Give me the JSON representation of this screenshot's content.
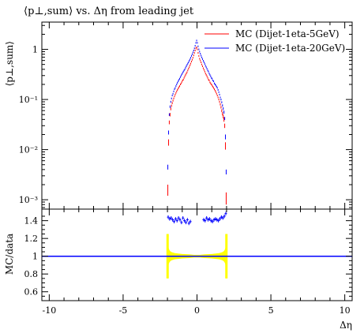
{
  "chart_data": [
    {
      "type": "scatter",
      "title": "⟨p⊥,sum⟩ vs. Δη from leading jet",
      "ylabel": "⟨p⊥,sum⟩",
      "xlabel": "",
      "xlim": [
        -10.5,
        10.5
      ],
      "yscale": "log",
      "ylim": [
        0.00065,
        3.5
      ],
      "yticks": [
        0.001,
        0.01,
        0.1,
        1
      ],
      "yticklabels": [
        "10⁻³",
        "10⁻²",
        "10⁻¹",
        "1"
      ],
      "legend": "top-right",
      "series": [
        {
          "name": "MC (Dijet-1eta-5GeV)",
          "color": "#ff0000",
          "points": [
            [
              -1.975,
              0.0016,
              0.0004
            ],
            [
              -1.925,
              0.014,
              0.002
            ],
            [
              -1.875,
              0.035,
              0.003
            ],
            [
              -1.825,
              0.05,
              0.004
            ],
            [
              -1.775,
              0.065,
              0.004
            ],
            [
              -1.725,
              0.075,
              0.004
            ],
            [
              -1.675,
              0.085,
              0.004
            ],
            [
              -1.625,
              0.095,
              0.004
            ],
            [
              -1.575,
              0.105,
              0.004
            ],
            [
              -1.525,
              0.115,
              0.004
            ],
            [
              -1.475,
              0.125,
              0.004
            ],
            [
              -1.425,
              0.135,
              0.004
            ],
            [
              -1.375,
              0.145,
              0.004
            ],
            [
              -1.325,
              0.155,
              0.004
            ],
            [
              -1.275,
              0.165,
              0.004
            ],
            [
              -1.225,
              0.175,
              0.004
            ],
            [
              -1.175,
              0.185,
              0.004
            ],
            [
              -1.125,
              0.2,
              0.004
            ],
            [
              -1.075,
              0.21,
              0.004
            ],
            [
              -1.025,
              0.225,
              0.004
            ],
            [
              -0.975,
              0.24,
              0.004
            ],
            [
              -0.925,
              0.25,
              0.004
            ],
            [
              -0.875,
              0.27,
              0.004
            ],
            [
              -0.825,
              0.29,
              0.004
            ],
            [
              -0.775,
              0.31,
              0.004
            ],
            [
              -0.725,
              0.33,
              0.004
            ],
            [
              -0.675,
              0.35,
              0.004
            ],
            [
              -0.625,
              0.38,
              0.004
            ],
            [
              -0.575,
              0.41,
              0.004
            ],
            [
              -0.525,
              0.44,
              0.004
            ],
            [
              -0.475,
              0.48,
              0.004
            ],
            [
              -0.425,
              0.52,
              0.004
            ],
            [
              -0.375,
              0.57,
              0.004
            ],
            [
              -0.325,
              0.62,
              0.004
            ],
            [
              -0.275,
              0.68,
              0.004
            ],
            [
              -0.225,
              0.76,
              0.004
            ],
            [
              -0.175,
              0.85,
              0.004
            ],
            [
              -0.125,
              0.95,
              0.004
            ],
            [
              -0.075,
              1.05,
              0.004
            ],
            [
              -0.025,
              1.1,
              0.004
            ],
            [
              0.025,
              1.0,
              0.004
            ],
            [
              0.075,
              0.85,
              0.004
            ],
            [
              0.125,
              0.74,
              0.004
            ],
            [
              0.175,
              0.65,
              0.004
            ],
            [
              0.225,
              0.6,
              0.004
            ],
            [
              0.275,
              0.55,
              0.004
            ],
            [
              0.325,
              0.5,
              0.004
            ],
            [
              0.375,
              0.46,
              0.004
            ],
            [
              0.425,
              0.42,
              0.004
            ],
            [
              0.475,
              0.39,
              0.004
            ],
            [
              0.525,
              0.36,
              0.004
            ],
            [
              0.575,
              0.33,
              0.004
            ],
            [
              0.625,
              0.31,
              0.004
            ],
            [
              0.675,
              0.29,
              0.004
            ],
            [
              0.725,
              0.27,
              0.004
            ],
            [
              0.775,
              0.25,
              0.004
            ],
            [
              0.825,
              0.24,
              0.004
            ],
            [
              0.875,
              0.22,
              0.004
            ],
            [
              0.925,
              0.21,
              0.004
            ],
            [
              0.975,
              0.2,
              0.004
            ],
            [
              1.025,
              0.19,
              0.004
            ],
            [
              1.075,
              0.18,
              0.004
            ],
            [
              1.125,
              0.17,
              0.004
            ],
            [
              1.175,
              0.16,
              0.004
            ],
            [
              1.225,
              0.15,
              0.004
            ],
            [
              1.275,
              0.14,
              0.004
            ],
            [
              1.325,
              0.13,
              0.004
            ],
            [
              1.375,
              0.12,
              0.004
            ],
            [
              1.425,
              0.11,
              0.004
            ],
            [
              1.475,
              0.1,
              0.004
            ],
            [
              1.525,
              0.09,
              0.004
            ],
            [
              1.575,
              0.08,
              0.004
            ],
            [
              1.625,
              0.07,
              0.004
            ],
            [
              1.675,
              0.06,
              0.004
            ],
            [
              1.725,
              0.052,
              0.004
            ],
            [
              1.775,
              0.046,
              0.004
            ],
            [
              1.825,
              0.04,
              0.004
            ],
            [
              1.875,
              0.03,
              0.003
            ],
            [
              1.925,
              0.012,
              0.002
            ],
            [
              1.975,
              0.0011,
              0.0003
            ]
          ]
        },
        {
          "name": "MC (Dijet-1eta-20GeV)",
          "color": "#0000ff",
          "points": [
            [
              -1.975,
              0.0045,
              0.0005
            ],
            [
              -1.925,
              0.022,
              0.002
            ],
            [
              -1.875,
              0.05,
              0.003
            ],
            [
              -1.825,
              0.072,
              0.004
            ],
            [
              -1.775,
              0.09,
              0.004
            ],
            [
              -1.725,
              0.105,
              0.004
            ],
            [
              -1.675,
              0.12,
              0.004
            ],
            [
              -1.625,
              0.13,
              0.004
            ],
            [
              -1.575,
              0.145,
              0.004
            ],
            [
              -1.525,
              0.16,
              0.004
            ],
            [
              -1.475,
              0.17,
              0.004
            ],
            [
              -1.425,
              0.185,
              0.004
            ],
            [
              -1.375,
              0.2,
              0.004
            ],
            [
              -1.325,
              0.215,
              0.004
            ],
            [
              -1.275,
              0.23,
              0.004
            ],
            [
              -1.225,
              0.245,
              0.004
            ],
            [
              -1.175,
              0.26,
              0.004
            ],
            [
              -1.125,
              0.28,
              0.004
            ],
            [
              -1.075,
              0.3,
              0.004
            ],
            [
              -1.025,
              0.32,
              0.004
            ],
            [
              -0.975,
              0.34,
              0.004
            ],
            [
              -0.925,
              0.36,
              0.004
            ],
            [
              -0.875,
              0.38,
              0.004
            ],
            [
              -0.825,
              0.4,
              0.004
            ],
            [
              -0.775,
              0.43,
              0.004
            ],
            [
              -0.725,
              0.46,
              0.004
            ],
            [
              -0.675,
              0.49,
              0.004
            ],
            [
              -0.625,
              0.52,
              0.004
            ],
            [
              -0.575,
              0.55,
              0.004
            ],
            [
              -0.525,
              0.59,
              0.004
            ],
            [
              -0.475,
              0.63,
              0.004
            ],
            [
              -0.425,
              0.68,
              0.004
            ],
            [
              -0.375,
              0.74,
              0.004
            ],
            [
              -0.325,
              0.8,
              0.004
            ],
            [
              -0.275,
              0.87,
              0.004
            ],
            [
              -0.225,
              0.95,
              0.004
            ],
            [
              -0.175,
              1.05,
              0.004
            ],
            [
              -0.125,
              1.18,
              0.004
            ],
            [
              -0.075,
              1.35,
              0.004
            ],
            [
              -0.025,
              1.5,
              0.004
            ],
            [
              0.025,
              1.35,
              0.004
            ],
            [
              0.075,
              1.15,
              0.004
            ],
            [
              0.125,
              1.0,
              0.004
            ],
            [
              0.175,
              0.9,
              0.004
            ],
            [
              0.225,
              0.82,
              0.004
            ],
            [
              0.275,
              0.75,
              0.004
            ],
            [
              0.325,
              0.69,
              0.004
            ],
            [
              0.375,
              0.64,
              0.004
            ],
            [
              0.425,
              0.59,
              0.004
            ],
            [
              0.475,
              0.55,
              0.004
            ],
            [
              0.525,
              0.51,
              0.004
            ],
            [
              0.575,
              0.47,
              0.004
            ],
            [
              0.625,
              0.44,
              0.004
            ],
            [
              0.675,
              0.41,
              0.004
            ],
            [
              0.725,
              0.38,
              0.004
            ],
            [
              0.775,
              0.36,
              0.004
            ],
            [
              0.825,
              0.33,
              0.004
            ],
            [
              0.875,
              0.31,
              0.004
            ],
            [
              0.925,
              0.29,
              0.004
            ],
            [
              0.975,
              0.27,
              0.004
            ],
            [
              1.025,
              0.26,
              0.004
            ],
            [
              1.075,
              0.24,
              0.004
            ],
            [
              1.125,
              0.23,
              0.004
            ],
            [
              1.175,
              0.21,
              0.004
            ],
            [
              1.225,
              0.2,
              0.004
            ],
            [
              1.275,
              0.19,
              0.004
            ],
            [
              1.325,
              0.18,
              0.004
            ],
            [
              1.375,
              0.17,
              0.004
            ],
            [
              1.425,
              0.155,
              0.004
            ],
            [
              1.475,
              0.14,
              0.004
            ],
            [
              1.525,
              0.125,
              0.004
            ],
            [
              1.575,
              0.11,
              0.004
            ],
            [
              1.625,
              0.1,
              0.004
            ],
            [
              1.675,
              0.088,
              0.004
            ],
            [
              1.725,
              0.076,
              0.004
            ],
            [
              1.775,
              0.066,
              0.004
            ],
            [
              1.825,
              0.056,
              0.004
            ],
            [
              1.875,
              0.042,
              0.003
            ],
            [
              1.925,
              0.018,
              0.002
            ],
            [
              1.975,
              0.0036,
              0.0004
            ]
          ]
        }
      ]
    },
    {
      "type": "scatter",
      "title": "",
      "ylabel": "MC/data",
      "xlabel": "Δη",
      "xlim": [
        -10.5,
        10.5
      ],
      "ylim": [
        0.5,
        1.53
      ],
      "yticks": [
        0.6,
        0.8,
        1,
        1.2,
        1.4
      ],
      "yticklabels": [
        "0.6",
        "0.8",
        "1",
        "1.2",
        "1.4"
      ],
      "xticks": [
        -10,
        -5,
        0,
        5,
        10
      ],
      "xticklabels": [
        "-10",
        "-5",
        "0",
        "5",
        "10"
      ],
      "reference_line": 1.0,
      "reference_color": "#0000ff",
      "band_color": "#ffff00",
      "band": {
        "x": [
          -2.0,
          -1.95,
          -1.9,
          -1.85,
          -1.8,
          -1.7,
          -1.5,
          -1.0,
          -0.5,
          -0.2,
          0.0,
          0.2,
          0.5,
          1.0,
          1.5,
          1.7,
          1.8,
          1.85,
          1.9,
          1.95,
          2.0
        ],
        "half_width": [
          0.26,
          0.12,
          0.08,
          0.065,
          0.055,
          0.045,
          0.035,
          0.025,
          0.02,
          0.015,
          0.015,
          0.015,
          0.02,
          0.025,
          0.035,
          0.045,
          0.055,
          0.065,
          0.08,
          0.12,
          0.26
        ]
      },
      "band_spikes": [
        {
          "x": -1.99,
          "low": 0.75,
          "high": 1.25
        },
        {
          "x": 1.99,
          "low": 0.75,
          "high": 1.25
        }
      ],
      "series": [
        {
          "name": "",
          "color": "#0000ff",
          "points": [
            [
              -1.95,
              1.44,
              0.02
            ],
            [
              -1.85,
              1.42,
              0.02
            ],
            [
              -1.75,
              1.43,
              0.02
            ],
            [
              -1.65,
              1.41,
              0.02
            ],
            [
              -1.55,
              1.39,
              0.02
            ],
            [
              -1.45,
              1.42,
              0.02
            ],
            [
              -1.35,
              1.4,
              0.02
            ],
            [
              -1.25,
              1.43,
              0.02
            ],
            [
              -1.15,
              1.41,
              0.02
            ],
            [
              -1.05,
              1.38,
              0.02
            ],
            [
              -0.95,
              1.43,
              0.02
            ],
            [
              -0.85,
              1.4,
              0.02
            ],
            [
              -0.75,
              1.38,
              0.02
            ],
            [
              -0.65,
              1.41,
              0.02
            ],
            [
              -0.55,
              1.37,
              0.02
            ],
            [
              -0.45,
              1.39,
              0.02
            ],
            [
              0.45,
              1.41,
              0.02
            ],
            [
              0.55,
              1.4,
              0.02
            ],
            [
              0.65,
              1.43,
              0.02
            ],
            [
              0.75,
              1.41,
              0.02
            ],
            [
              0.85,
              1.42,
              0.02
            ],
            [
              0.95,
              1.4,
              0.02
            ],
            [
              1.05,
              1.39,
              0.02
            ],
            [
              1.15,
              1.41,
              0.02
            ],
            [
              1.25,
              1.42,
              0.02
            ],
            [
              1.35,
              1.41,
              0.02
            ],
            [
              1.45,
              1.4,
              0.02
            ],
            [
              1.55,
              1.42,
              0.02
            ],
            [
              1.65,
              1.44,
              0.02
            ],
            [
              1.75,
              1.43,
              0.02
            ],
            [
              1.85,
              1.45,
              0.02
            ],
            [
              1.95,
              1.48,
              0.02
            ]
          ]
        }
      ]
    }
  ]
}
